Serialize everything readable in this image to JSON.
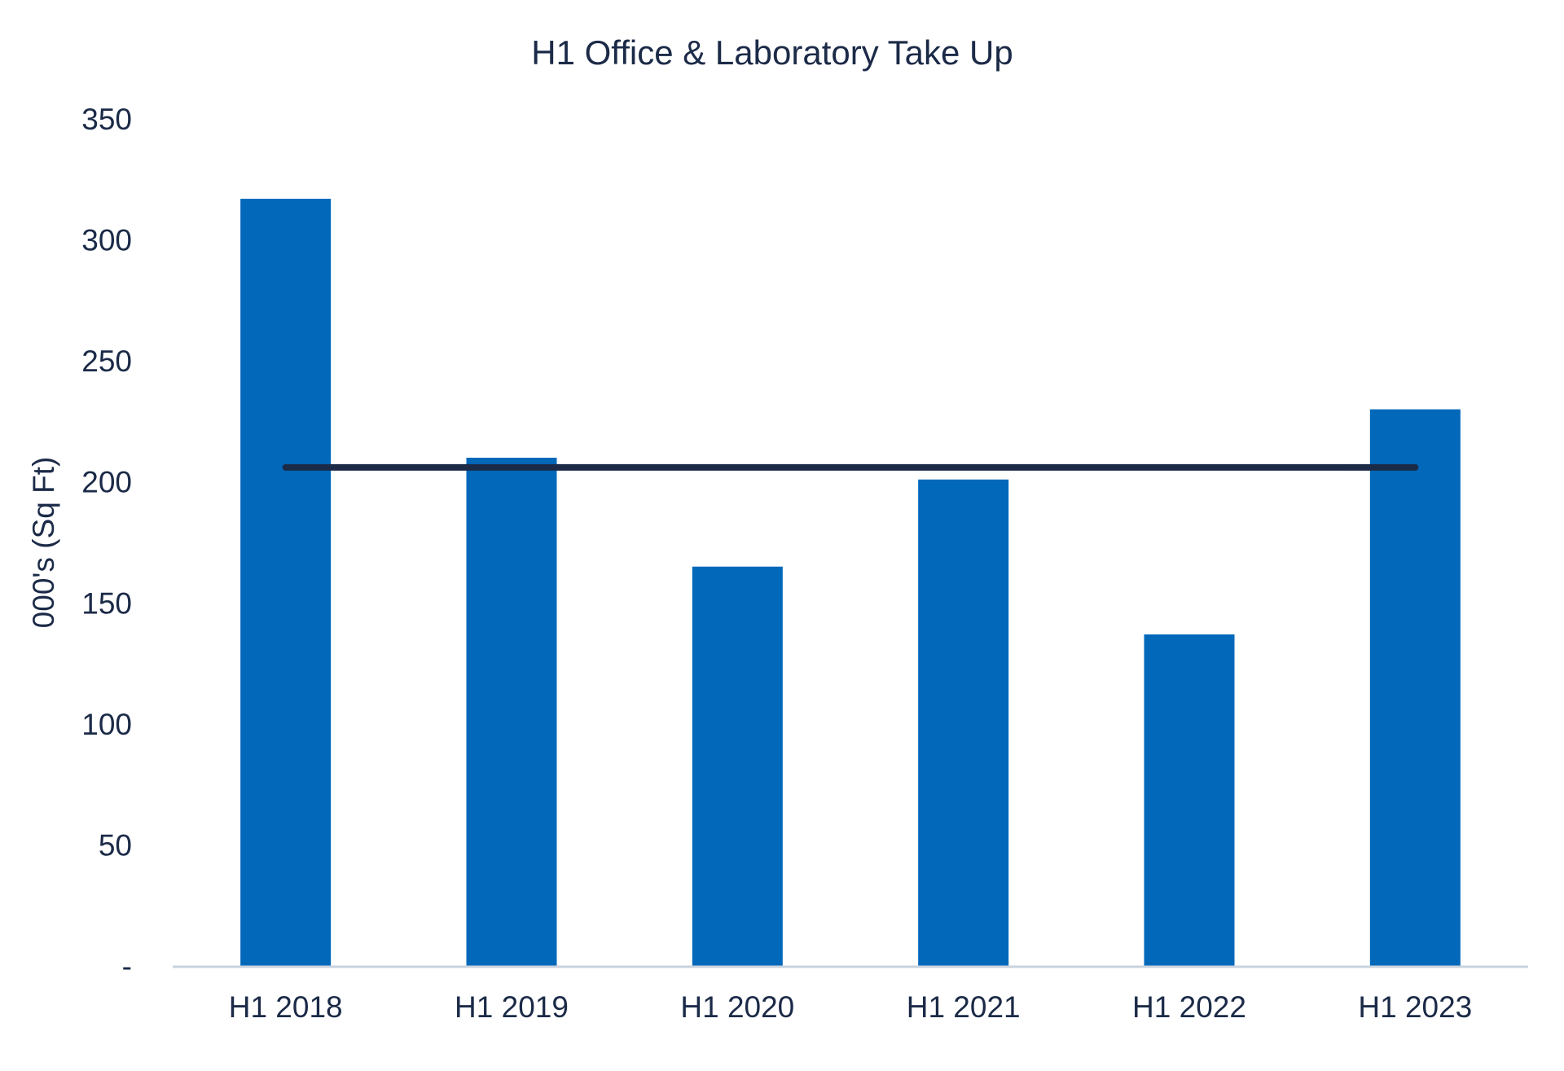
{
  "chart_data": {
    "type": "bar",
    "title": "H1 Office & Laboratory Take Up",
    "xlabel": "",
    "ylabel": "000's (Sq Ft)",
    "categories": [
      "H1 2018",
      "H1 2019",
      "H1 2020",
      "H1 2021",
      "H1 2022",
      "H1 2023"
    ],
    "series": [
      {
        "values": [
          317,
          210,
          165,
          201,
          137,
          230
        ]
      }
    ],
    "average_line": {
      "value": 206
    },
    "ylim": [
      0,
      350
    ],
    "yticks": [
      0,
      50,
      100,
      150,
      200,
      250,
      300,
      350
    ],
    "ytick_labels": [
      "-",
      "50",
      "100",
      "150",
      "200",
      "250",
      "300",
      "350"
    ],
    "grid": false,
    "legend": "none",
    "colors": {
      "bar": "#0168BA",
      "line": "#1B2A47",
      "text": "#1B2A47",
      "axis": "#C9D3DE"
    }
  }
}
